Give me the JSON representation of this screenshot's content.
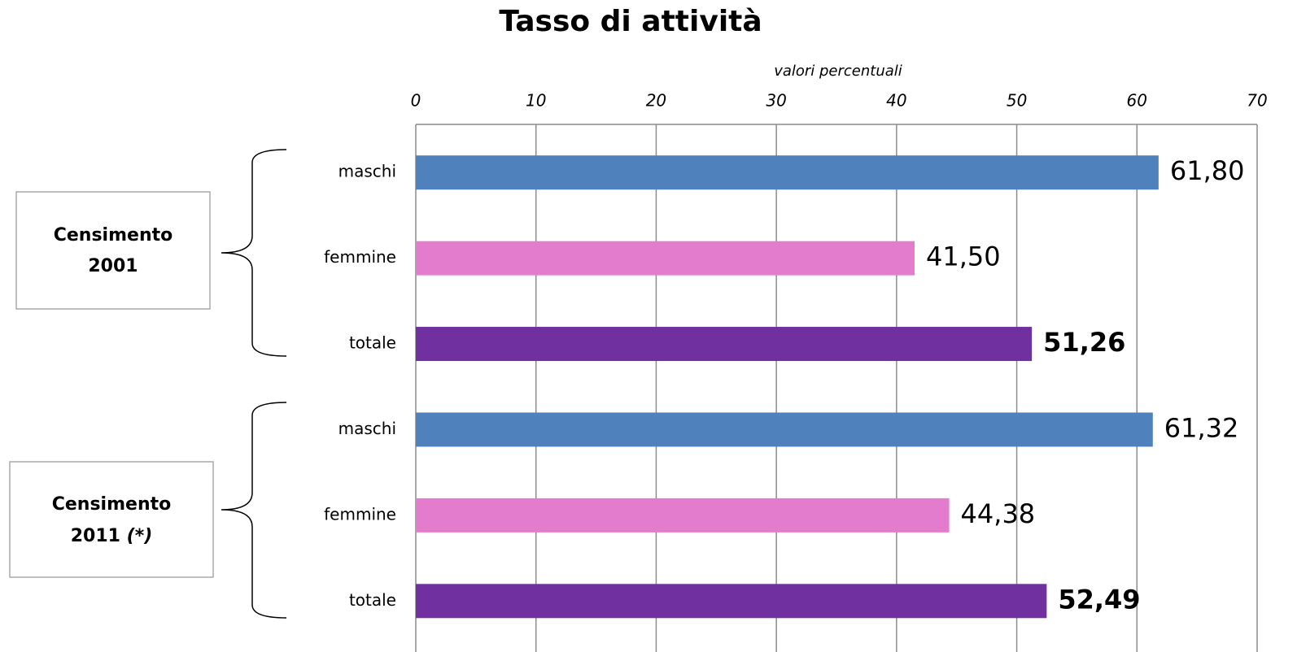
{
  "chart_data": {
    "type": "bar",
    "orientation": "horizontal",
    "title": "Tasso di attività",
    "x_label": "valori percentuali",
    "categories": [
      "maschi",
      "femmine",
      "totale",
      "maschi",
      "femmine",
      "totale"
    ],
    "values": [
      61.8,
      41.5,
      51.26,
      61.32,
      44.38,
      52.49
    ],
    "value_labels": [
      "61,80",
      "41,50",
      "51,26",
      "61,32",
      "44,38",
      "52,49"
    ],
    "value_label_bold": [
      false,
      false,
      true,
      false,
      false,
      true
    ],
    "colors": [
      "#4f81bd",
      "#e37ccd",
      "#7030a0",
      "#4f81bd",
      "#e37ccd",
      "#7030a0"
    ],
    "groups": [
      {
        "lines": [
          "Censimento",
          "2001"
        ]
      },
      {
        "lines": [
          "Censimento",
          "2011"
        ],
        "note": "(*)"
      }
    ],
    "xlim": [
      0,
      70
    ],
    "xticks": [
      0,
      10,
      20,
      30,
      40,
      50,
      60,
      70
    ],
    "grid": true
  }
}
